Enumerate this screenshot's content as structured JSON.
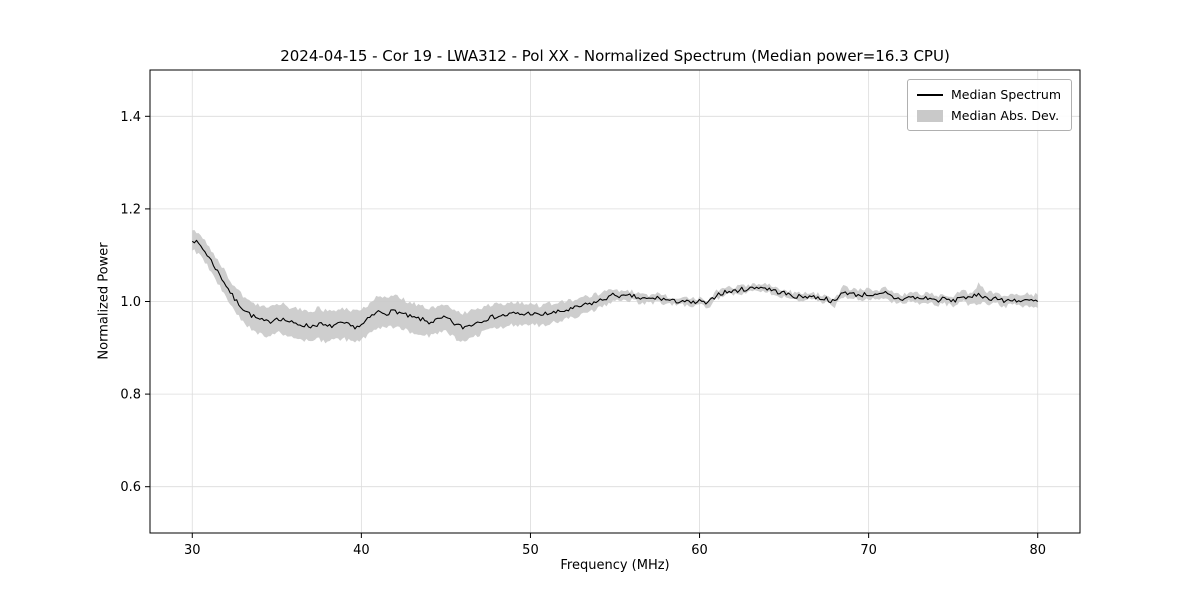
{
  "chart_data": {
    "type": "line",
    "title": "2024-04-15 - Cor 19 - LWA312 - Pol XX - Normalized Spectrum (Median power=16.3 CPU)",
    "xlabel": "Frequency (MHz)",
    "ylabel": "Normalized Power",
    "xlim": [
      27.5,
      82.5
    ],
    "ylim": [
      0.5,
      1.5
    ],
    "xticks": [
      30,
      40,
      50,
      60,
      70,
      80
    ],
    "yticks": [
      0.6,
      0.8,
      1.0,
      1.2,
      1.4
    ],
    "grid": true,
    "colors": {
      "grid": "#dcdcdc",
      "axes": "#000000",
      "background": "#ffffff"
    },
    "legend": {
      "position": "upper right"
    },
    "x": [
      30.0,
      30.5,
      31.0,
      31.5,
      32.0,
      32.5,
      33.0,
      33.5,
      34.0,
      34.5,
      35.0,
      35.5,
      36.0,
      36.5,
      37.0,
      37.5,
      38.0,
      38.5,
      39.0,
      39.5,
      40.0,
      40.5,
      41.0,
      41.5,
      42.0,
      42.5,
      43.0,
      43.5,
      44.0,
      44.5,
      45.0,
      45.5,
      46.0,
      46.5,
      47.0,
      47.5,
      48.0,
      48.5,
      49.0,
      49.5,
      50.0,
      50.5,
      51.0,
      51.5,
      52.0,
      52.5,
      53.0,
      53.5,
      54.0,
      54.5,
      55.0,
      55.5,
      56.0,
      56.5,
      57.0,
      57.5,
      58.0,
      58.5,
      59.0,
      59.5,
      60.0,
      60.5,
      61.0,
      61.5,
      62.0,
      62.5,
      63.0,
      63.5,
      64.0,
      64.5,
      65.0,
      65.5,
      66.0,
      66.5,
      67.0,
      67.5,
      68.0,
      68.5,
      69.0,
      69.5,
      70.0,
      70.5,
      71.0,
      71.5,
      72.0,
      72.5,
      73.0,
      73.5,
      74.0,
      74.5,
      75.0,
      75.5,
      76.0,
      76.5,
      77.0,
      77.5,
      78.0,
      78.5,
      79.0,
      79.5,
      80.0
    ],
    "series": [
      {
        "name": "Median Spectrum",
        "type": "line",
        "color": "#000000",
        "values": [
          1.135,
          1.12,
          1.095,
          1.065,
          1.035,
          1.005,
          0.985,
          0.97,
          0.96,
          0.955,
          0.965,
          0.96,
          0.952,
          0.95,
          0.946,
          0.952,
          0.945,
          0.95,
          0.952,
          0.945,
          0.948,
          0.965,
          0.978,
          0.975,
          0.98,
          0.972,
          0.965,
          0.962,
          0.955,
          0.96,
          0.965,
          0.952,
          0.944,
          0.95,
          0.958,
          0.964,
          0.968,
          0.97,
          0.974,
          0.972,
          0.975,
          0.97,
          0.974,
          0.976,
          0.98,
          0.984,
          0.99,
          0.995,
          1.0,
          1.008,
          1.015,
          1.01,
          1.012,
          1.006,
          1.005,
          1.008,
          1.004,
          1.0,
          1.002,
          0.996,
          1.0,
          0.995,
          1.015,
          1.02,
          1.022,
          1.026,
          1.028,
          1.032,
          1.028,
          1.022,
          1.018,
          1.012,
          1.01,
          1.012,
          1.008,
          1.006,
          0.998,
          1.022,
          1.016,
          1.014,
          1.016,
          1.012,
          1.018,
          1.008,
          1.005,
          1.01,
          1.006,
          1.008,
          1.002,
          1.006,
          1.0,
          1.012,
          1.005,
          1.018,
          1.006,
          1.008,
          1.0,
          1.005,
          1.0,
          1.002,
          1.0
        ]
      },
      {
        "name": "Median Abs. Dev.",
        "type": "band",
        "color": "#c9c9c9",
        "around": "Median Spectrum",
        "half_widths": [
          0.022,
          0.022,
          0.024,
          0.026,
          0.026,
          0.028,
          0.028,
          0.03,
          0.03,
          0.03,
          0.032,
          0.032,
          0.032,
          0.033,
          0.033,
          0.034,
          0.033,
          0.033,
          0.034,
          0.033,
          0.032,
          0.032,
          0.034,
          0.033,
          0.033,
          0.032,
          0.031,
          0.031,
          0.03,
          0.03,
          0.03,
          0.031,
          0.032,
          0.03,
          0.028,
          0.027,
          0.026,
          0.025,
          0.024,
          0.024,
          0.023,
          0.022,
          0.022,
          0.021,
          0.02,
          0.019,
          0.018,
          0.017,
          0.016,
          0.014,
          0.012,
          0.01,
          0.01,
          0.009,
          0.009,
          0.009,
          0.008,
          0.008,
          0.008,
          0.008,
          0.008,
          0.008,
          0.008,
          0.008,
          0.008,
          0.008,
          0.008,
          0.008,
          0.008,
          0.008,
          0.008,
          0.008,
          0.008,
          0.008,
          0.008,
          0.008,
          0.008,
          0.01,
          0.01,
          0.01,
          0.01,
          0.01,
          0.01,
          0.01,
          0.01,
          0.01,
          0.01,
          0.01,
          0.01,
          0.011,
          0.011,
          0.012,
          0.012,
          0.02,
          0.012,
          0.012,
          0.013,
          0.012,
          0.013,
          0.014,
          0.014
        ]
      }
    ],
    "render_hints": {
      "jitter_amplitude": 0.005,
      "jitter_seed": 7,
      "subdivisions": 4
    }
  }
}
